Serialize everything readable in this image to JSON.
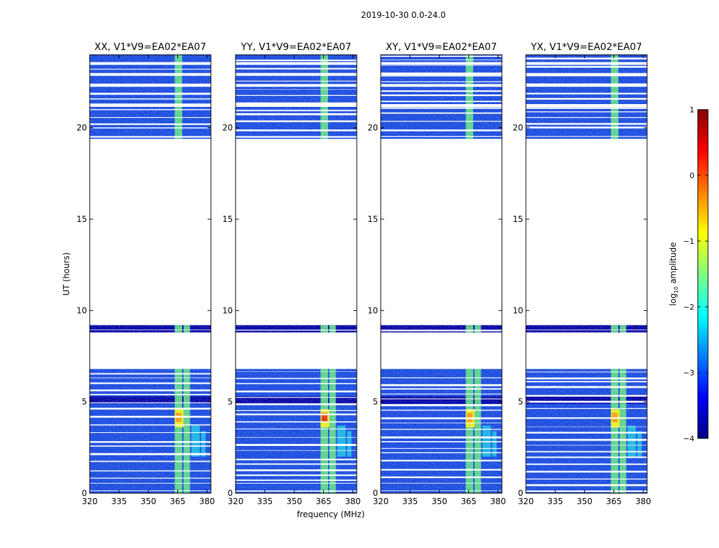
{
  "figure_title": "2019-10-30 0.0-24.0",
  "colors": {
    "background": "#ffffff",
    "deep_blue": "#0a0aa8",
    "blue": "#1f4fe0",
    "cyan": "#22bfe6",
    "green": "#66e08a",
    "yellow": "#e8ee2a",
    "orange": "#f59a18",
    "red": "#e62a16"
  },
  "chart_data": {
    "type": "heatmap",
    "title": "2019-10-30 0.0-24.0",
    "xlabel": "frequency (MHz)",
    "ylabel": "UT (hours)",
    "xlim": [
      320,
      382
    ],
    "ylim": [
      0,
      24
    ],
    "xticks": [
      320,
      335,
      350,
      365,
      380
    ],
    "xtick_labels": [
      "320",
      "335",
      "350",
      "365",
      "380"
    ],
    "yticks": [
      0,
      5,
      10,
      15,
      20
    ],
    "ytick_labels": [
      "0",
      "5",
      "10",
      "15",
      "20"
    ],
    "panels": [
      {
        "title": "XX, V1*V9=EA02*EA07",
        "polarization": "XX"
      },
      {
        "title": "YY, V1*V9=EA02*EA07",
        "polarization": "YY"
      },
      {
        "title": "XY, V1*V9=EA02*EA07",
        "polarization": "XY"
      },
      {
        "title": "YX, V1*V9=EA02*EA07",
        "polarization": "YX"
      }
    ],
    "data_time_ranges_hours": [
      [
        0,
        6.8
      ],
      [
        8.8,
        9.2
      ],
      [
        19.4,
        24.0
      ]
    ],
    "flagged_time_ranges_hours": [
      [
        6.8,
        8.8
      ],
      [
        9.2,
        19.4
      ]
    ],
    "bright_channel_bands_mhz": [
      [
        363.5,
        368
      ],
      [
        368,
        372
      ],
      [
        372,
        377
      ],
      [
        377,
        380
      ]
    ],
    "peak_time_range_hours": [
      3.6,
      4.6
    ],
    "colorbar": {
      "label": "log10 amplitude",
      "label_main": "log",
      "label_sub": "10",
      "label_tail": " amplitude",
      "min": -4,
      "max": 1,
      "ticks": [
        -4,
        -3,
        -2,
        -1,
        0,
        1
      ],
      "tick_labels": [
        "−4",
        "−3",
        "−2",
        "−1",
        "0",
        "1"
      ],
      "colormap": "jet"
    }
  }
}
